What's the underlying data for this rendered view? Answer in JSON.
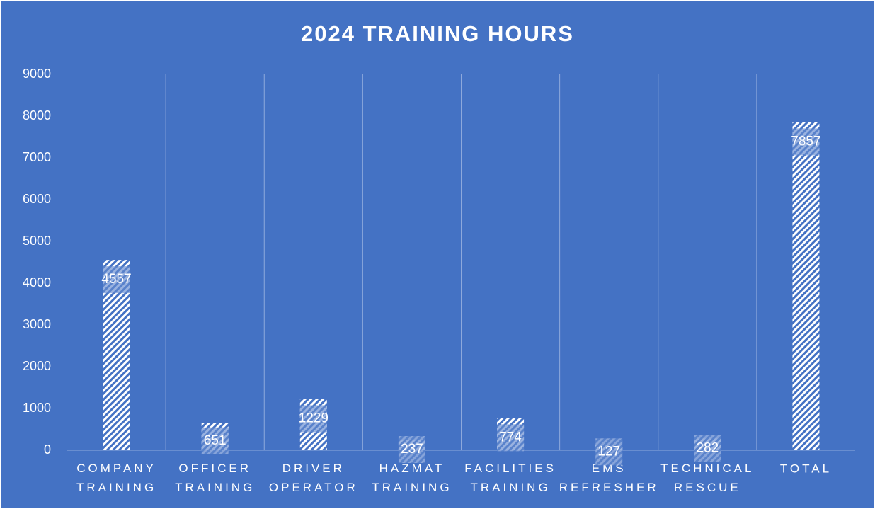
{
  "chart_data": {
    "type": "bar",
    "title": "2024 TRAINING HOURS",
    "categories": [
      "COMPANY TRAINING",
      "OFFICER TRAINING",
      "DRIVER OPERATOR",
      "HAZMAT TRAINING",
      "FACILITIES TRAINING",
      "EMS REFRESHER",
      "TECHNICAL RESCUE",
      "TOTAL"
    ],
    "values": [
      4557,
      651,
      1229,
      237,
      774,
      127,
      282,
      7857
    ],
    "color": "#ffffff",
    "ylim": [
      0,
      9000
    ],
    "yticks": [
      0,
      1000,
      2000,
      3000,
      4000,
      5000,
      6000,
      7000,
      8000,
      9000
    ],
    "grid": false
  }
}
